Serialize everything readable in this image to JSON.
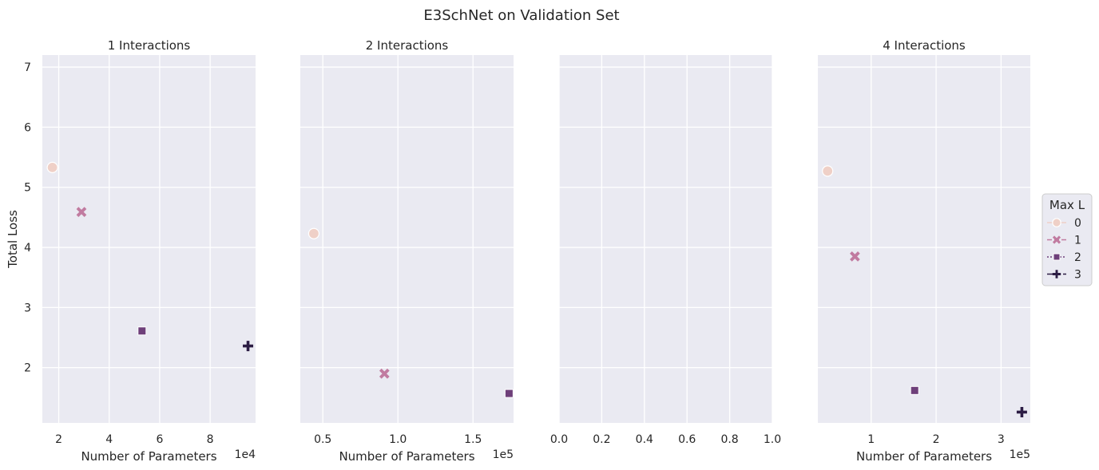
{
  "title": "E3SchNet on Validation Set",
  "colors": {
    "panel_bg": "#eaeaf2",
    "grid": "#ffffff",
    "text": "#262626",
    "series": [
      "#efd0c7",
      "#c17ba0",
      "#6e3f7a",
      "#2c1d44"
    ]
  },
  "chart_data": [
    {
      "type": "scatter",
      "title": "1 Interactions",
      "xlabel": "Number of Parameters",
      "ylabel": "Total Loss",
      "x_offset_label": "1e4",
      "xlim": [
        1.35,
        9.8
      ],
      "ylim": [
        1.08,
        7.2
      ],
      "xticks": [
        2,
        4,
        6,
        8
      ],
      "yticks": [
        2,
        3,
        4,
        5,
        6,
        7
      ],
      "grid": true,
      "points": [
        {
          "series": "0",
          "x": 1.75,
          "y": 5.33
        },
        {
          "series": "1",
          "x": 2.9,
          "y": 4.59
        },
        {
          "series": "2",
          "x": 5.3,
          "y": 2.61
        },
        {
          "series": "3",
          "x": 9.5,
          "y": 2.36
        }
      ]
    },
    {
      "type": "scatter",
      "title": "2 Interactions",
      "xlabel": "Number of Parameters",
      "x_offset_label": "1e5",
      "xlim": [
        0.35,
        1.77
      ],
      "ylim": [
        1.08,
        7.2
      ],
      "xticks": [
        0.5,
        1.0,
        1.5
      ],
      "xtick_labels": [
        "0.5",
        "1.0",
        "1.5"
      ],
      "yticks": [
        2,
        3,
        4,
        5,
        6,
        7
      ],
      "grid": true,
      "points": [
        {
          "series": "0",
          "x": 0.44,
          "y": 4.23
        },
        {
          "series": "1",
          "x": 0.91,
          "y": 1.9
        },
        {
          "series": "2",
          "x": 1.74,
          "y": 1.57
        }
      ]
    },
    {
      "type": "scatter",
      "title": "",
      "xlim": [
        0,
        1
      ],
      "ylim": [
        1.08,
        7.2
      ],
      "xticks": [
        0.0,
        0.2,
        0.4,
        0.6,
        0.8,
        1.0
      ],
      "xtick_labels": [
        "0.0",
        "0.2",
        "0.4",
        "0.6",
        "0.8",
        "1.0"
      ],
      "yticks": [
        2,
        3,
        4,
        5,
        6,
        7
      ],
      "grid": true,
      "points": []
    },
    {
      "type": "scatter",
      "title": "4 Interactions",
      "xlabel": "Number of Parameters",
      "x_offset_label": "1e5",
      "xlim": [
        0.18,
        3.45
      ],
      "ylim": [
        1.08,
        7.2
      ],
      "xticks": [
        1,
        2,
        3
      ],
      "yticks": [
        2,
        3,
        4,
        5,
        6,
        7
      ],
      "grid": true,
      "points": [
        {
          "series": "0",
          "x": 0.33,
          "y": 5.27
        },
        {
          "series": "1",
          "x": 0.75,
          "y": 3.85
        },
        {
          "series": "2",
          "x": 1.67,
          "y": 1.62
        },
        {
          "series": "3",
          "x": 3.32,
          "y": 1.26
        }
      ]
    }
  ],
  "legend": {
    "title": "Max L",
    "placement": "right",
    "entries": [
      {
        "label": "0",
        "marker": "circle"
      },
      {
        "label": "1",
        "marker": "x"
      },
      {
        "label": "2",
        "marker": "square"
      },
      {
        "label": "3",
        "marker": "plus"
      }
    ]
  }
}
